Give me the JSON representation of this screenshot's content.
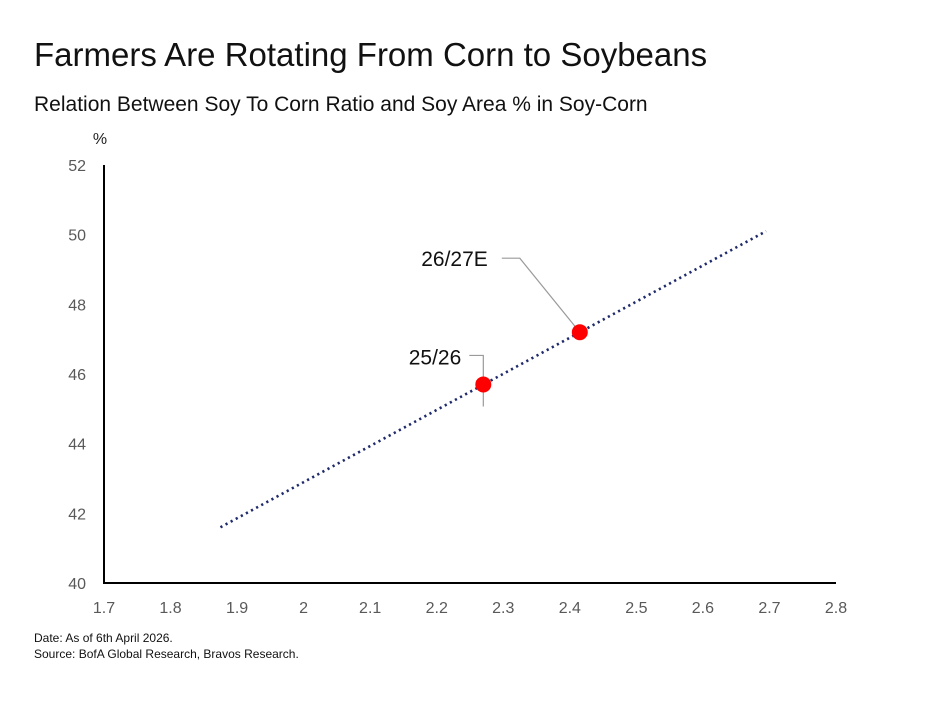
{
  "header": {
    "title": "Farmers Are Rotating From Corn to Soybeans",
    "subtitle": "Relation Between Soy To Corn Ratio and Soy Area % in Soy-Corn"
  },
  "footer": {
    "date": "Date: As of 6th April 2026.",
    "source": "Source: BofA Global Research, Bravos Research."
  },
  "chart_data": {
    "type": "scatter",
    "xlabel": "",
    "ylabel": "%",
    "xlim": [
      1.7,
      2.8
    ],
    "ylim": [
      40,
      52
    ],
    "x_ticks": [
      1.7,
      1.8,
      1.9,
      2,
      2.1,
      2.2,
      2.3,
      2.4,
      2.5,
      2.6,
      2.7,
      2.8
    ],
    "y_ticks": [
      40,
      42,
      44,
      46,
      48,
      50,
      52
    ],
    "grid": false,
    "trendline": {
      "style": "dotted",
      "color": "#1f2a6b",
      "x": [
        1.875,
        2.695
      ],
      "y": [
        41.6,
        50.1
      ]
    },
    "points": [
      {
        "label": "25/26",
        "x": 2.27,
        "y": 45.7,
        "color": "#ff0000"
      },
      {
        "label": "26/27E",
        "x": 2.415,
        "y": 47.2,
        "color": "#ff0000"
      }
    ]
  }
}
